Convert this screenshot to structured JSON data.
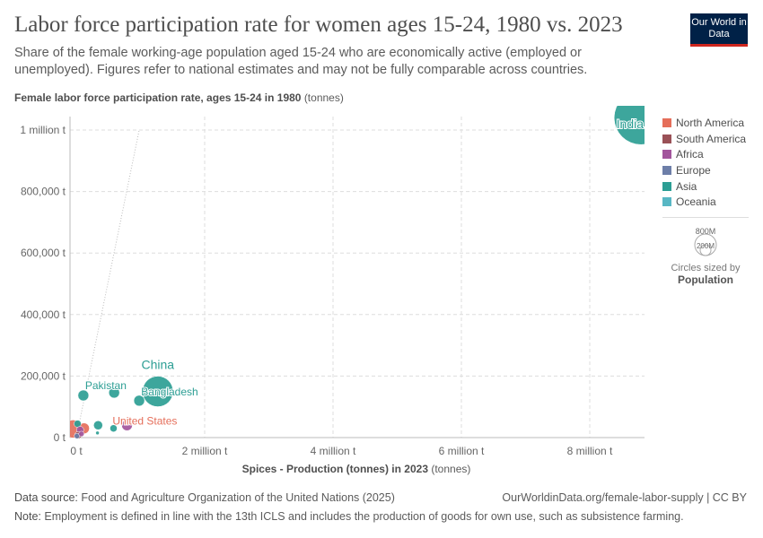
{
  "title": "Labor force participation rate for women ages 15-24, 1980 vs. 2023",
  "subtitle": "Share of the female working-age population aged 15-24 who are economically active (employed or unemployed). Figures refer to national estimates and may not be fully comparable across countries.",
  "logo": "Our World in Data",
  "chart_data": {
    "type": "scatter",
    "ylabel_bold": "Female labor force participation rate, ages 15-24 in 1980",
    "ylabel_unit": "(tonnes)",
    "xlabel_bold": "Spices - Production (tonnes) in 2023",
    "xlabel_unit": "(tonnes)",
    "xlim": [
      0,
      8900000
    ],
    "ylim": [
      0,
      1050000
    ],
    "xticks": [
      {
        "v": 0,
        "label": "0 t"
      },
      {
        "v": 2000000,
        "label": "2 million t"
      },
      {
        "v": 4000000,
        "label": "4 million t"
      },
      {
        "v": 6000000,
        "label": "6 million t"
      },
      {
        "v": 8000000,
        "label": "8 million t"
      }
    ],
    "yticks": [
      {
        "v": 0,
        "label": "0 t"
      },
      {
        "v": 200000,
        "label": "200,000 t"
      },
      {
        "v": 400000,
        "label": "400,000 t"
      },
      {
        "v": 600000,
        "label": "600,000 t"
      },
      {
        "v": 800000,
        "label": "800,000 t"
      },
      {
        "v": 1000000,
        "label": "1 million t"
      }
    ],
    "grid": true,
    "colors": {
      "North America": "#e56e5a",
      "South America": "#9a5157",
      "Africa": "#a2559c",
      "Europe": "#6d7ea8",
      "Asia": "#2c9e94",
      "Oceania": "#58b7c4"
    },
    "points": [
      {
        "label": "India",
        "continent": "Asia",
        "x": 8800000,
        "y": 1040000,
        "r": 30
      },
      {
        "label": "China",
        "continent": "Asia",
        "x": 1270000,
        "y": 150000,
        "r": 17
      },
      {
        "label": "Bangladesh",
        "continent": "Asia",
        "x": 980000,
        "y": 120000,
        "r": 6
      },
      {
        "label": "Pakistan",
        "continent": "Asia",
        "x": 110000,
        "y": 137000,
        "r": 6
      },
      {
        "label": "",
        "continent": "Asia",
        "x": 590000,
        "y": 146000,
        "r": 6
      },
      {
        "label": "United States",
        "continent": "North America",
        "x": -50000,
        "y": 28000,
        "r": 10
      },
      {
        "label": "",
        "continent": "North America",
        "x": 120000,
        "y": 30000,
        "r": 6
      },
      {
        "label": "",
        "continent": "Africa",
        "x": 790000,
        "y": 40000,
        "r": 6
      },
      {
        "label": "",
        "continent": "Asia",
        "x": 340000,
        "y": 40000,
        "r": 5
      },
      {
        "label": "",
        "continent": "Asia",
        "x": 580000,
        "y": 30000,
        "r": 4
      },
      {
        "label": "",
        "continent": "Asia",
        "x": 330000,
        "y": 15000,
        "r": 2
      },
      {
        "label": "",
        "continent": "Asia",
        "x": 20000,
        "y": 45000,
        "r": 4
      },
      {
        "label": "",
        "continent": "Africa",
        "x": 60000,
        "y": 25000,
        "r": 4
      },
      {
        "label": "",
        "continent": "South America",
        "x": 30000,
        "y": 8000,
        "r": 4
      },
      {
        "label": "",
        "continent": "Europe",
        "x": 10000,
        "y": 5000,
        "r": 3
      },
      {
        "label": "",
        "continent": "Africa",
        "x": 80000,
        "y": 12000,
        "r": 3
      }
    ],
    "legend": [
      "North America",
      "South America",
      "Africa",
      "Europe",
      "Asia",
      "Oceania"
    ],
    "size_legend": {
      "large": "800M",
      "small": "200M",
      "caption": "Circles sized by",
      "variable": "Population"
    }
  },
  "footer": {
    "source_label": "Data source:",
    "source": "Food and Agriculture Organization of the United Nations (2025)",
    "url": "OurWorldinData.org/female-labor-supply | CC BY",
    "note_label": "Note:",
    "note": "Employment is defined in line with the 13th ICLS and includes the production of goods for own use, such as subsistence farming."
  }
}
